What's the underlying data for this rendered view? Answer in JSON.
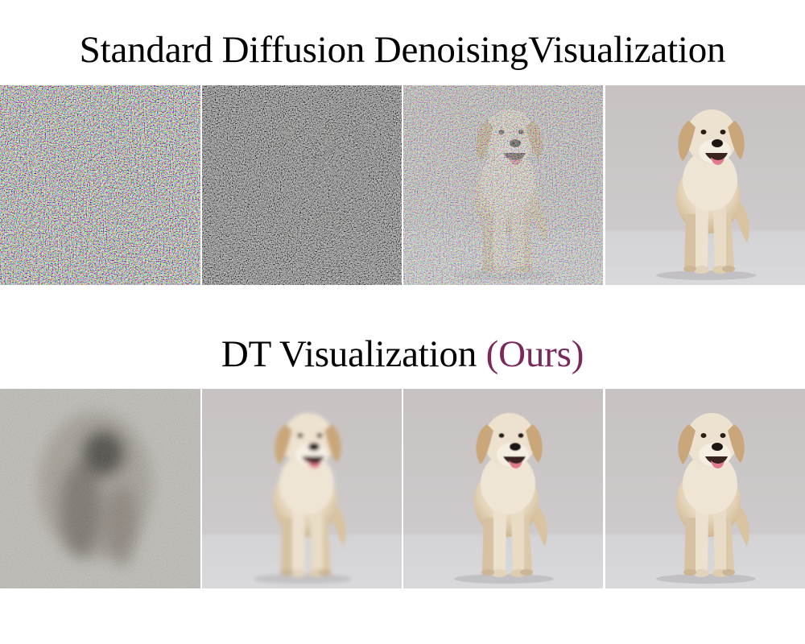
{
  "standard": {
    "title": "Standard Diffusion DenoisingVisualization"
  },
  "dt": {
    "title_main": "DT Visualization ",
    "title_accent": "(Ours)",
    "accent_color": "#7a2a5a"
  },
  "rows": [
    {
      "name": "standard",
      "panels": [
        "pure-noise",
        "heavy-noise-faint-dog",
        "noisy-dog",
        "clean-dog"
      ]
    },
    {
      "name": "dt",
      "panels": [
        "blurry-blob",
        "blurred-dog",
        "near-clean-dog",
        "clean-dog"
      ]
    }
  ],
  "colors": {
    "background": "#ffffff",
    "studio_backdrop": "#c9c6c5",
    "studio_floor": "#d6d5d6",
    "fur": "#e9dcc6"
  }
}
